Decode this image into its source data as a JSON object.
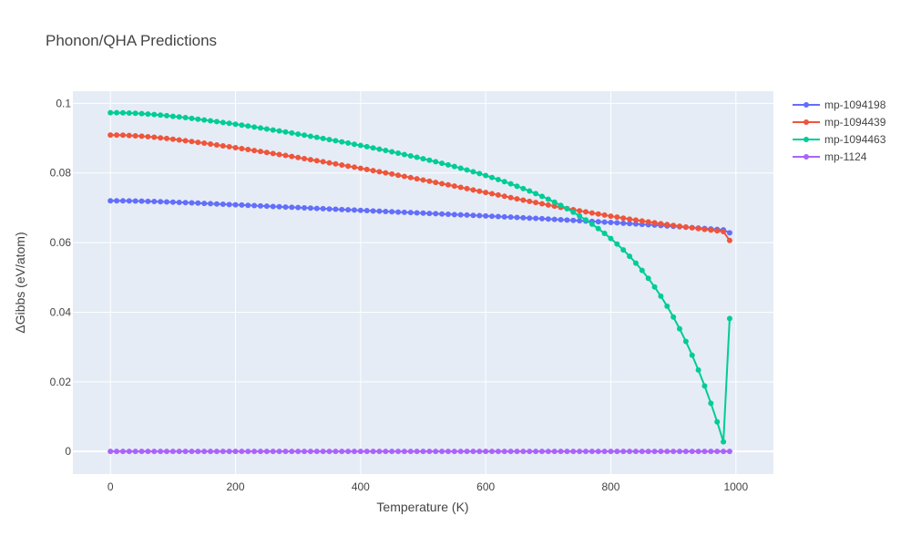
{
  "chart_data": {
    "type": "line",
    "title": "Phonon/QHA Predictions",
    "xlabel": "Temperature (K)",
    "ylabel": "ΔGibbs (eV/atom)",
    "xlim": [
      -60,
      1060
    ],
    "ylim": [
      -0.0065,
      0.1035
    ],
    "xticks": [
      0,
      200,
      400,
      600,
      800,
      1000
    ],
    "xtick_labels": [
      "0",
      "200",
      "400",
      "600",
      "800",
      "1000"
    ],
    "yticks": [
      0,
      0.02,
      0.04,
      0.06,
      0.08,
      0.1
    ],
    "ytick_labels": [
      "0",
      "0.02",
      "0.04",
      "0.06",
      "0.08",
      "0.1"
    ],
    "grid": true,
    "legend_position": "top-right",
    "x": [
      0,
      10,
      20,
      30,
      40,
      50,
      60,
      70,
      80,
      90,
      100,
      110,
      120,
      130,
      140,
      150,
      160,
      170,
      180,
      190,
      200,
      210,
      220,
      230,
      240,
      250,
      260,
      270,
      280,
      290,
      300,
      310,
      320,
      330,
      340,
      350,
      360,
      370,
      380,
      390,
      400,
      410,
      420,
      430,
      440,
      450,
      460,
      470,
      480,
      490,
      500,
      510,
      520,
      530,
      540,
      550,
      560,
      570,
      580,
      590,
      600,
      610,
      620,
      630,
      640,
      650,
      660,
      670,
      680,
      690,
      700,
      710,
      720,
      730,
      740,
      750,
      760,
      770,
      780,
      790,
      800,
      810,
      820,
      830,
      840,
      850,
      860,
      870,
      880,
      890,
      900,
      910,
      920,
      930,
      940,
      950,
      960,
      970,
      980,
      990
    ],
    "series": [
      {
        "name": "mp-1094198",
        "color": "#636efa",
        "values": [
          0.072,
          0.072,
          0.07199,
          0.07197,
          0.07194,
          0.0719,
          0.07185,
          0.0718,
          0.07174,
          0.07168,
          0.07162,
          0.07155,
          0.07148,
          0.07141,
          0.07134,
          0.07126,
          0.07118,
          0.0711,
          0.07102,
          0.07094,
          0.07086,
          0.07078,
          0.0707,
          0.07062,
          0.07054,
          0.07046,
          0.07038,
          0.0703,
          0.07022,
          0.07014,
          0.07006,
          0.06998,
          0.0699,
          0.06982,
          0.06974,
          0.06966,
          0.06958,
          0.0695,
          0.06942,
          0.06934,
          0.06926,
          0.06918,
          0.0691,
          0.06902,
          0.06894,
          0.06886,
          0.06878,
          0.0687,
          0.06862,
          0.06854,
          0.06846,
          0.06838,
          0.0683,
          0.06822,
          0.06814,
          0.06806,
          0.06798,
          0.0679,
          0.06782,
          0.06774,
          0.06766,
          0.06757,
          0.06748,
          0.0674,
          0.06731,
          0.06722,
          0.06713,
          0.06704,
          0.06695,
          0.06686,
          0.06676,
          0.06667,
          0.06658,
          0.06648,
          0.06638,
          0.06628,
          0.06618,
          0.06608,
          0.06598,
          0.06588,
          0.06578,
          0.06568,
          0.06557,
          0.06546,
          0.06535,
          0.06524,
          0.06513,
          0.06502,
          0.0649,
          0.06478,
          0.06466,
          0.06454,
          0.06442,
          0.0643,
          0.06418,
          0.06405,
          0.06392,
          0.06379,
          0.06366,
          0.0628
        ]
      },
      {
        "name": "mp-1094439",
        "color": "#ef553b",
        "values": [
          0.0909,
          0.0909,
          0.09085,
          0.09078,
          0.09068,
          0.09056,
          0.09042,
          0.09026,
          0.09009,
          0.0899,
          0.0897,
          0.08949,
          0.08927,
          0.08904,
          0.0888,
          0.08856,
          0.08831,
          0.08806,
          0.0878,
          0.08754,
          0.08727,
          0.087,
          0.08673,
          0.08645,
          0.08617,
          0.08589,
          0.0856,
          0.08531,
          0.08502,
          0.08473,
          0.08443,
          0.08413,
          0.08383,
          0.08353,
          0.08322,
          0.08291,
          0.0826,
          0.08229,
          0.08197,
          0.08165,
          0.08133,
          0.08101,
          0.08068,
          0.08035,
          0.08002,
          0.07969,
          0.07935,
          0.07901,
          0.07867,
          0.07833,
          0.07798,
          0.07763,
          0.07728,
          0.07693,
          0.07658,
          0.07622,
          0.07586,
          0.0755,
          0.07513,
          0.07476,
          0.0744,
          0.07403,
          0.07366,
          0.0733,
          0.07293,
          0.07257,
          0.07221,
          0.07185,
          0.0715,
          0.07115,
          0.0708,
          0.07046,
          0.07012,
          0.06979,
          0.06946,
          0.06914,
          0.06882,
          0.06851,
          0.0682,
          0.0679,
          0.0676,
          0.06731,
          0.06702,
          0.06674,
          0.06647,
          0.0662,
          0.06594,
          0.06568,
          0.06543,
          0.06518,
          0.06494,
          0.0647,
          0.06447,
          0.06424,
          0.06402,
          0.0638,
          0.06359,
          0.06338,
          0.06318,
          0.0606
        ]
      },
      {
        "name": "mp-1094463",
        "color": "#00cc96",
        "values": [
          0.0973,
          0.0973,
          0.09727,
          0.09722,
          0.09714,
          0.09704,
          0.09692,
          0.09678,
          0.09663,
          0.09646,
          0.09628,
          0.09609,
          0.09589,
          0.09568,
          0.09546,
          0.09523,
          0.095,
          0.09476,
          0.09451,
          0.09426,
          0.094,
          0.09374,
          0.09347,
          0.0932,
          0.09292,
          0.09264,
          0.09235,
          0.09206,
          0.09177,
          0.09147,
          0.09117,
          0.09086,
          0.09055,
          0.09023,
          0.08991,
          0.08959,
          0.08926,
          0.08893,
          0.08859,
          0.08825,
          0.0879,
          0.08755,
          0.08719,
          0.08683,
          0.08646,
          0.08608,
          0.0857,
          0.08531,
          0.08491,
          0.0845,
          0.08409,
          0.08366,
          0.08322,
          0.08278,
          0.08232,
          0.08185,
          0.08136,
          0.08086,
          0.08035,
          0.07982,
          0.07927,
          0.0787,
          0.07811,
          0.0775,
          0.07687,
          0.07621,
          0.07552,
          0.07481,
          0.07406,
          0.07328,
          0.07246,
          0.0716,
          0.07069,
          0.06973,
          0.06872,
          0.06765,
          0.06651,
          0.0653,
          0.06401,
          0.06263,
          0.06116,
          0.05958,
          0.05789,
          0.05607,
          0.05411,
          0.052,
          0.04972,
          0.04726,
          0.0446,
          0.04172,
          0.03861,
          0.03524,
          0.0316,
          0.02766,
          0.0234,
          0.0188,
          0.01384,
          0.0085,
          0.00276,
          0.0382
        ]
      },
      {
        "name": "mp-1124",
        "color": "#ab63fa",
        "values": [
          0,
          0,
          0,
          0,
          0,
          0,
          0,
          0,
          0,
          0,
          0,
          0,
          0,
          0,
          0,
          0,
          0,
          0,
          0,
          0,
          0,
          0,
          0,
          0,
          0,
          0,
          0,
          0,
          0,
          0,
          0,
          0,
          0,
          0,
          0,
          0,
          0,
          0,
          0,
          0,
          0,
          0,
          0,
          0,
          0,
          0,
          0,
          0,
          0,
          0,
          0,
          0,
          0,
          0,
          0,
          0,
          0,
          0,
          0,
          0,
          0,
          0,
          0,
          0,
          0,
          0,
          0,
          0,
          0,
          0,
          0,
          0,
          0,
          0,
          0,
          0,
          0,
          0,
          0,
          0,
          0,
          0,
          0,
          0,
          0,
          0,
          0,
          0,
          0,
          0,
          0,
          0,
          0,
          0,
          0,
          0,
          0,
          0,
          0,
          0
        ]
      }
    ]
  }
}
